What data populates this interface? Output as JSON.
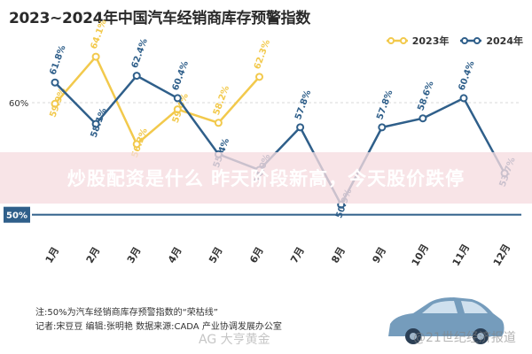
{
  "title": "2023~2024年中国汽车经销商库存预警指数",
  "legend": {
    "s2023": "2023年",
    "s2024": "2024年"
  },
  "colors": {
    "s2023": "#f2c94c",
    "s2024": "#2f5f8a",
    "threshold": "#2f5f8a"
  },
  "banner": "炒股配资是什么 昨天阶段新高，今天股价跌停",
  "notes": {
    "line1": "注:50%为汽车经销商库存预警指数的“荣枯线”",
    "line2": "记者:宋豆豆  编辑:张明艳  数据来源:CADA 产业协调发展办公室"
  },
  "watermark_left": "AG 大亨黄金",
  "watermark_right": "@21世纪经济报道",
  "chart_data": {
    "type": "line",
    "categories": [
      "1月",
      "2月",
      "3月",
      "4月",
      "5月",
      "6月",
      "7月",
      "8月",
      "9月",
      "10月",
      "11月",
      "12月"
    ],
    "series": [
      {
        "name": "2023年",
        "values": [
          59.9,
          64.1,
          56.3,
          59.4,
          58.2,
          62.3,
          null,
          null,
          null,
          null,
          null,
          null
        ],
        "labels": [
          "59.9%",
          "64.1%",
          "56.3%",
          "59.4%",
          "58.2%",
          "62.3%",
          "",
          "",
          "",
          "",
          "",
          ""
        ]
      },
      {
        "name": "2024年",
        "values": [
          61.8,
          58.1,
          62.4,
          60.4,
          55.4,
          54.0,
          57.8,
          50.9,
          57.8,
          58.6,
          60.4,
          53.7
        ],
        "labels": [
          "61.8%",
          "58.1%",
          "62.4%",
          "60.4%",
          "55.4%",
          "54.0%",
          "57.8%",
          "50.9%",
          "57.8%",
          "58.6%",
          "60.4%",
          "53.7%"
        ]
      }
    ],
    "ytick_labels": [
      "60%",
      "50%"
    ],
    "ytick_values": [
      60,
      50
    ],
    "threshold": {
      "value": 50,
      "label": "50%"
    },
    "ylim": [
      48,
      66
    ]
  }
}
